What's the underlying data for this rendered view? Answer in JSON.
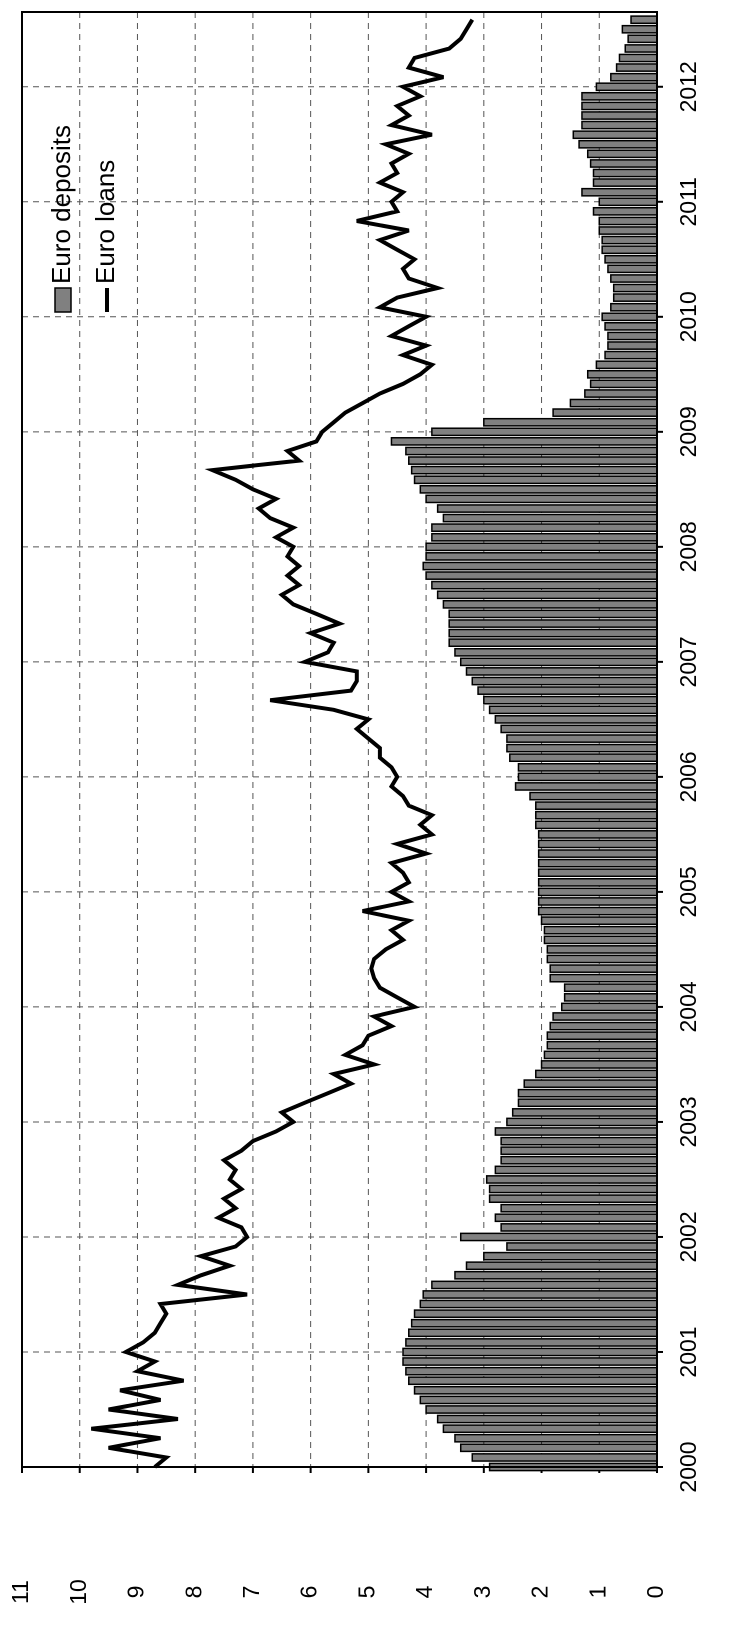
{
  "chart_data": {
    "type": "combo",
    "xlim": [
      2000,
      2012.65
    ],
    "xticks": [
      2000,
      2001,
      2002,
      2003,
      2004,
      2005,
      2006,
      2007,
      2008,
      2009,
      2010,
      2011,
      2012
    ],
    "ylim": [
      0,
      11
    ],
    "yticks": [
      0,
      1,
      2,
      3,
      4,
      5,
      6,
      7,
      8,
      9,
      10,
      11
    ],
    "grid": true,
    "legend": "top-left",
    "x": [
      2000.0,
      2000.083,
      2000.167,
      2000.25,
      2000.333,
      2000.417,
      2000.5,
      2000.583,
      2000.667,
      2000.75,
      2000.833,
      2000.917,
      2001.0,
      2001.083,
      2001.167,
      2001.25,
      2001.333,
      2001.417,
      2001.5,
      2001.583,
      2001.667,
      2001.75,
      2001.833,
      2001.917,
      2002.0,
      2002.083,
      2002.167,
      2002.25,
      2002.333,
      2002.417,
      2002.5,
      2002.583,
      2002.667,
      2002.75,
      2002.833,
      2002.917,
      2003.0,
      2003.083,
      2003.167,
      2003.25,
      2003.333,
      2003.417,
      2003.5,
      2003.583,
      2003.667,
      2003.75,
      2003.833,
      2003.917,
      2004.0,
      2004.083,
      2004.167,
      2004.25,
      2004.333,
      2004.417,
      2004.5,
      2004.583,
      2004.667,
      2004.75,
      2004.833,
      2004.917,
      2005.0,
      2005.083,
      2005.167,
      2005.25,
      2005.333,
      2005.417,
      2005.5,
      2005.583,
      2005.667,
      2005.75,
      2005.833,
      2005.917,
      2006.0,
      2006.083,
      2006.167,
      2006.25,
      2006.333,
      2006.417,
      2006.5,
      2006.583,
      2006.667,
      2006.75,
      2006.833,
      2006.917,
      2007.0,
      2007.083,
      2007.167,
      2007.25,
      2007.333,
      2007.417,
      2007.5,
      2007.583,
      2007.667,
      2007.75,
      2007.833,
      2007.917,
      2008.0,
      2008.083,
      2008.167,
      2008.25,
      2008.333,
      2008.417,
      2008.5,
      2008.583,
      2008.667,
      2008.75,
      2008.833,
      2008.917,
      2009.0,
      2009.083,
      2009.167,
      2009.25,
      2009.333,
      2009.417,
      2009.5,
      2009.583,
      2009.667,
      2009.75,
      2009.833,
      2009.917,
      2010.0,
      2010.083,
      2010.167,
      2010.25,
      2010.333,
      2010.417,
      2010.5,
      2010.583,
      2010.667,
      2010.75,
      2010.833,
      2010.917,
      2011.0,
      2011.083,
      2011.167,
      2011.25,
      2011.333,
      2011.417,
      2011.5,
      2011.583,
      2011.667,
      2011.75,
      2011.833,
      2011.917,
      2012.0,
      2012.083,
      2012.167,
      2012.25,
      2012.333,
      2012.417,
      2012.5,
      2012.583
    ],
    "series": [
      {
        "name": "Euro deposits",
        "type": "bar",
        "color": "#808080",
        "values": [
          2.9,
          3.2,
          3.4,
          3.5,
          3.7,
          3.8,
          4.0,
          4.1,
          4.2,
          4.3,
          4.35,
          4.4,
          4.4,
          4.35,
          4.3,
          4.25,
          4.2,
          4.1,
          4.05,
          3.9,
          3.5,
          3.3,
          3.0,
          2.6,
          3.4,
          2.7,
          2.8,
          2.7,
          2.9,
          2.9,
          2.95,
          2.8,
          2.7,
          2.7,
          2.7,
          2.8,
          2.6,
          2.5,
          2.4,
          2.4,
          2.3,
          2.1,
          2.0,
          1.95,
          1.9,
          1.9,
          1.85,
          1.8,
          1.65,
          1.6,
          1.6,
          1.85,
          1.85,
          1.9,
          1.9,
          1.95,
          1.95,
          2.0,
          2.05,
          2.05,
          2.05,
          2.05,
          2.05,
          2.05,
          2.05,
          2.05,
          2.05,
          2.1,
          2.1,
          2.1,
          2.2,
          2.45,
          2.4,
          2.4,
          2.55,
          2.6,
          2.6,
          2.7,
          2.8,
          2.9,
          3.0,
          3.1,
          3.2,
          3.3,
          3.4,
          3.5,
          3.6,
          3.6,
          3.6,
          3.6,
          3.7,
          3.8,
          3.9,
          4.0,
          4.05,
          4.0,
          4.0,
          3.9,
          3.9,
          3.7,
          3.8,
          4.0,
          4.1,
          4.2,
          4.25,
          4.3,
          4.35,
          4.6,
          3.9,
          3.0,
          1.8,
          1.5,
          1.25,
          1.15,
          1.2,
          1.05,
          0.9,
          0.85,
          0.85,
          0.9,
          0.95,
          0.8,
          0.75,
          0.75,
          0.8,
          0.85,
          0.9,
          0.95,
          0.95,
          1.0,
          1.0,
          1.1,
          1.0,
          1.3,
          1.1,
          1.1,
          1.15,
          1.2,
          1.35,
          1.45,
          1.3,
          1.3,
          1.3,
          1.3,
          1.05,
          0.8,
          0.7,
          0.65,
          0.55,
          0.5,
          0.6,
          0.45
        ]
      },
      {
        "name": "Euro loans",
        "type": "line",
        "color": "#000000",
        "values": [
          8.7,
          8.5,
          9.5,
          8.6,
          9.8,
          8.3,
          9.5,
          8.6,
          9.3,
          8.2,
          9.0,
          8.7,
          9.2,
          8.9,
          8.7,
          8.6,
          8.5,
          8.6,
          7.1,
          8.3,
          7.9,
          7.4,
          7.9,
          7.3,
          7.1,
          7.2,
          7.6,
          7.3,
          7.5,
          7.2,
          7.4,
          7.3,
          7.5,
          7.2,
          7.0,
          6.6,
          6.3,
          6.5,
          6.1,
          5.7,
          5.3,
          5.6,
          4.9,
          5.4,
          5.1,
          5.0,
          4.6,
          4.9,
          4.2,
          4.5,
          4.8,
          4.9,
          4.95,
          4.9,
          4.7,
          4.4,
          4.6,
          4.3,
          5.1,
          4.3,
          4.6,
          4.3,
          4.4,
          4.6,
          4.0,
          4.5,
          3.9,
          4.1,
          3.9,
          4.3,
          4.4,
          4.6,
          4.5,
          4.6,
          4.8,
          4.8,
          5.0,
          5.2,
          5.0,
          5.6,
          6.7,
          5.3,
          5.2,
          5.2,
          6.1,
          5.7,
          5.6,
          6.0,
          5.5,
          5.9,
          6.3,
          6.5,
          6.2,
          6.4,
          6.2,
          6.4,
          6.3,
          6.6,
          6.3,
          6.7,
          6.9,
          6.6,
          7.0,
          7.3,
          7.7,
          6.2,
          6.4,
          5.9,
          5.8,
          5.6,
          5.4,
          5.1,
          4.8,
          4.4,
          4.1,
          3.9,
          4.4,
          4.0,
          4.6,
          4.3,
          4.0,
          4.8,
          4.5,
          3.8,
          4.3,
          4.4,
          4.2,
          4.5,
          4.8,
          4.3,
          5.2,
          4.5,
          4.6,
          4.4,
          4.8,
          4.5,
          4.6,
          4.3,
          4.7,
          3.9,
          4.6,
          4.3,
          4.5,
          4.1,
          4.4,
          3.7,
          4.3,
          4.2,
          3.6,
          3.4,
          3.3,
          3.2
        ]
      }
    ]
  }
}
